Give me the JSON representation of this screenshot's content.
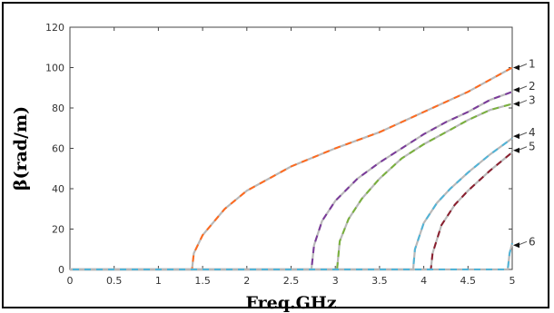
{
  "chart_data": {
    "type": "line",
    "title": "",
    "xlabel": "Freq.GHz",
    "ylabel": "β(rad/m)",
    "xlim": [
      0,
      5
    ],
    "ylim": [
      0,
      120
    ],
    "xticks": [
      "0",
      "0.5",
      "1",
      "1.5",
      "2",
      "2.5",
      "3",
      "3.5",
      "4",
      "4.5",
      "5"
    ],
    "yticks": [
      "0",
      "20",
      "40",
      "60",
      "80",
      "100",
      "120"
    ],
    "grid": false,
    "series": [
      {
        "name": "1",
        "color": "#ff6a1e",
        "cutoff": 1.38,
        "x": [
          0,
          1.38,
          1.4,
          1.5,
          1.75,
          2.0,
          2.5,
          3.0,
          3.5,
          4.0,
          4.5,
          5.0
        ],
        "y": [
          0,
          0,
          8,
          17,
          30,
          39,
          51,
          60,
          68,
          78,
          88,
          100
        ]
      },
      {
        "name": "2",
        "color": "#7a3a9a",
        "cutoff": 2.73,
        "x": [
          0,
          2.73,
          2.76,
          2.85,
          3.0,
          3.25,
          3.5,
          3.75,
          4.0,
          4.25,
          4.5,
          4.75,
          5.0
        ],
        "y": [
          0,
          0,
          12,
          24,
          34,
          45,
          53,
          60,
          67,
          73,
          78,
          84,
          88
        ]
      },
      {
        "name": "3",
        "color": "#79b13c",
        "cutoff": 3.02,
        "x": [
          0,
          3.02,
          3.05,
          3.15,
          3.3,
          3.5,
          3.75,
          4.0,
          4.25,
          4.5,
          4.75,
          5.0
        ],
        "y": [
          0,
          0,
          14,
          25,
          35,
          45,
          55,
          62,
          68,
          74,
          79,
          82
        ]
      },
      {
        "name": "4",
        "color": "#4fb4d8",
        "cutoff": 3.88,
        "x": [
          0,
          3.88,
          3.9,
          4.0,
          4.15,
          4.3,
          4.5,
          4.75,
          5.0
        ],
        "y": [
          0,
          0,
          10,
          23,
          33,
          40,
          48,
          57,
          65
        ]
      },
      {
        "name": "5",
        "color": "#8a1e2e",
        "cutoff": 4.08,
        "x": [
          0,
          4.08,
          4.1,
          4.2,
          4.35,
          4.5,
          4.75,
          5.0
        ],
        "y": [
          0,
          0,
          8,
          22,
          32,
          39,
          49,
          58
        ]
      },
      {
        "name": "6",
        "color": "#4fb4d8",
        "cutoff": 4.95,
        "x": [
          0,
          4.95,
          4.97,
          5.0
        ],
        "y": [
          0,
          0,
          8,
          13
        ]
      }
    ],
    "mode_labels": [
      {
        "text": "1",
        "target": [
          5.0,
          100
        ]
      },
      {
        "text": "2",
        "target": [
          5.0,
          89
        ]
      },
      {
        "text": "3",
        "target": [
          5.0,
          82
        ]
      },
      {
        "text": "4",
        "target": [
          5.0,
          66
        ]
      },
      {
        "text": "5",
        "target": [
          5.0,
          59
        ]
      },
      {
        "text": "6",
        "target": [
          5.0,
          12
        ]
      }
    ]
  }
}
